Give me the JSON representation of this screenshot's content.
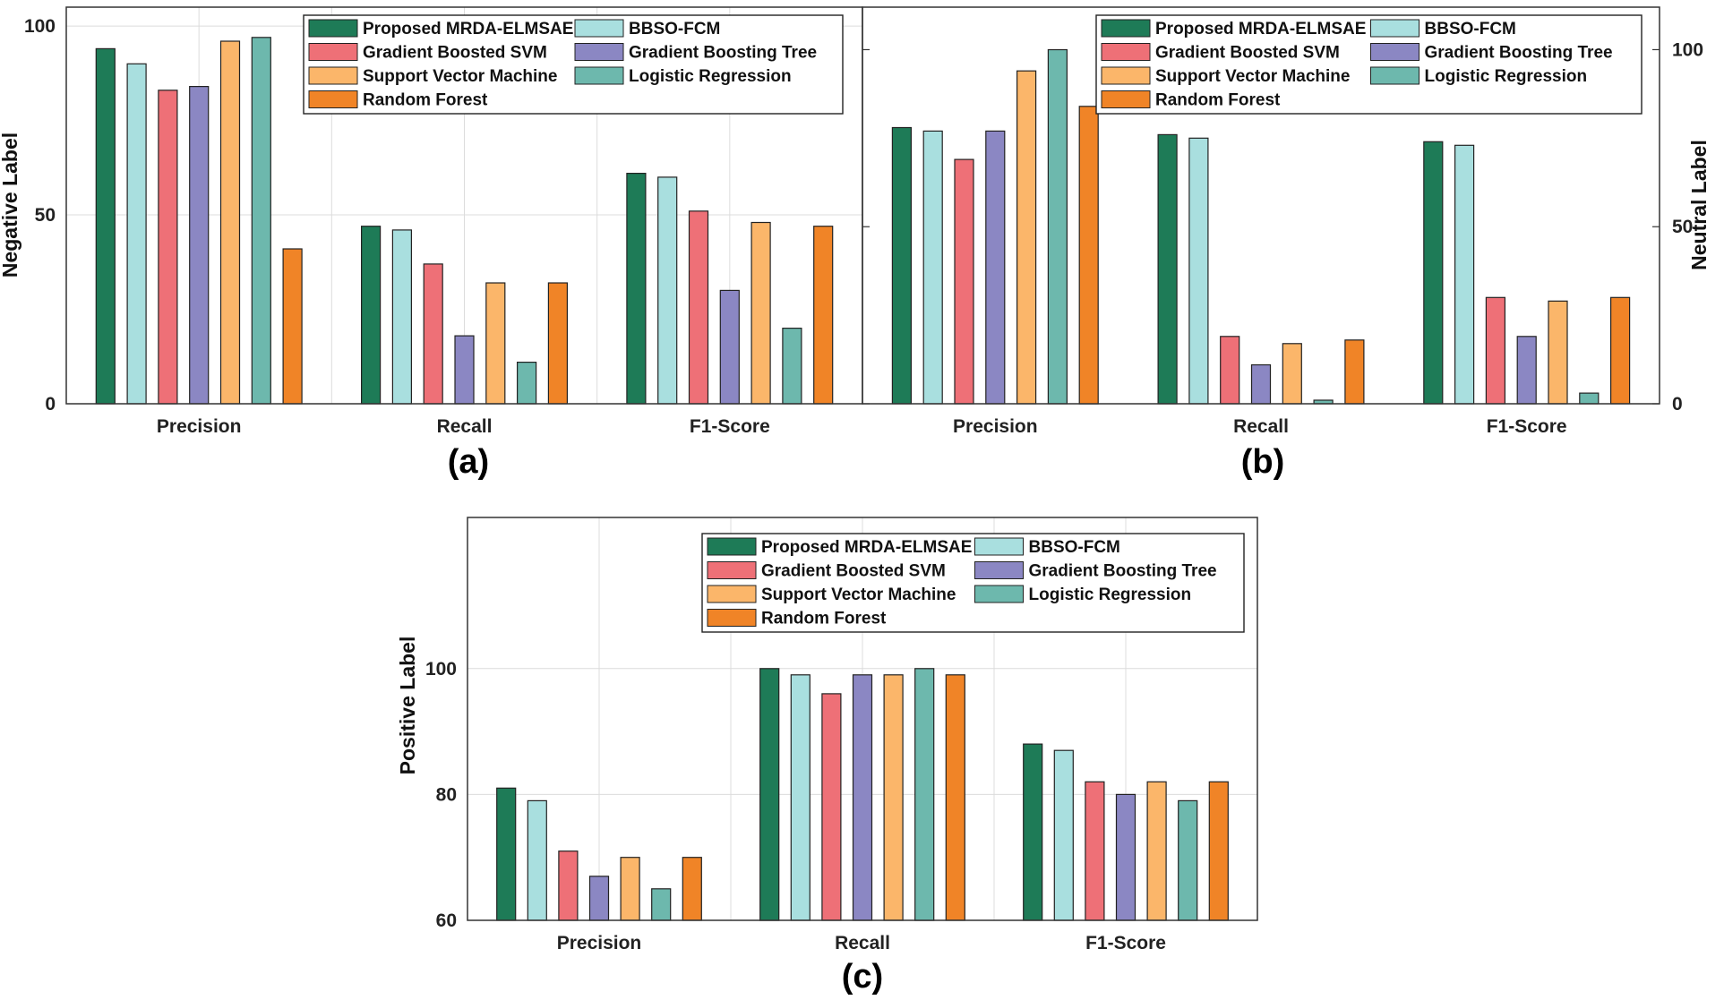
{
  "figure": {
    "captions": [
      "(a)",
      "(b)",
      "(c)"
    ]
  },
  "legend_labels": [
    "Proposed MRDA-ELMSAE",
    "BBSO-FCM",
    "Gradient Boosted SVM",
    "Gradient Boosting Tree",
    "Support Vector Machine",
    "Logistic Regression",
    "Random Forest"
  ],
  "series_colors": {
    "Proposed MRDA-ELMSAE": "#1e7b57",
    "BBSO-FCM": "#a9dfdf",
    "Gradient Boosted SVM": "#ee7077",
    "Gradient Boosting Tree": "#8b87c3",
    "Support Vector Machine": "#fbb66a",
    "Logistic Regression": "#6db8ad",
    "Random Forest": "#f08427"
  },
  "chart_data": [
    {
      "type": "bar",
      "caption": "(a)",
      "title": "",
      "xlabel": "",
      "ylabel": "Negative Label",
      "y_axis_side": "left",
      "ylim": [
        0,
        105
      ],
      "yticks": [
        0,
        50,
        100
      ],
      "grid": true,
      "legend_position": "top-right",
      "categories": [
        "Precision",
        "Recall",
        "F1-Score"
      ],
      "series": [
        {
          "name": "Proposed MRDA-ELMSAE",
          "values": [
            94,
            47,
            61
          ]
        },
        {
          "name": "BBSO-FCM",
          "values": [
            90,
            46,
            60
          ]
        },
        {
          "name": "Gradient Boosted SVM",
          "values": [
            83,
            37,
            51
          ]
        },
        {
          "name": "Gradient Boosting Tree",
          "values": [
            84,
            18,
            30
          ]
        },
        {
          "name": "Support Vector Machine",
          "values": [
            96,
            32,
            48
          ]
        },
        {
          "name": "Logistic Regression",
          "values": [
            97,
            11,
            20
          ]
        },
        {
          "name": "Random Forest",
          "values": [
            41,
            32,
            47
          ]
        }
      ]
    },
    {
      "type": "bar",
      "caption": "(b)",
      "title": "",
      "xlabel": "",
      "ylabel": "Neutral Label",
      "y_axis_side": "right",
      "ylim": [
        0,
        112
      ],
      "yticks": [
        0,
        50,
        100
      ],
      "grid": false,
      "legend_position": "top-right",
      "categories": [
        "Precision",
        "Recall",
        "F1-Score"
      ],
      "series": [
        {
          "name": "Proposed MRDA-ELMSAE",
          "values": [
            78,
            76,
            74
          ]
        },
        {
          "name": "BBSO-FCM",
          "values": [
            77,
            75,
            73
          ]
        },
        {
          "name": "Gradient Boosted SVM",
          "values": [
            69,
            19,
            30
          ]
        },
        {
          "name": "Gradient Boosting Tree",
          "values": [
            77,
            11,
            19
          ]
        },
        {
          "name": "Support Vector Machine",
          "values": [
            94,
            17,
            29
          ]
        },
        {
          "name": "Logistic Regression",
          "values": [
            100,
            1,
            3
          ]
        },
        {
          "name": "Random Forest",
          "values": [
            84,
            18,
            30
          ]
        }
      ]
    },
    {
      "type": "bar",
      "caption": "(c)",
      "title": "",
      "xlabel": "",
      "ylabel": "Positive Label",
      "y_axis_side": "left",
      "ylim": [
        60,
        124
      ],
      "yticks": [
        60,
        80,
        100
      ],
      "grid": true,
      "legend_position": "top-right",
      "categories": [
        "Precision",
        "Recall",
        "F1-Score"
      ],
      "series": [
        {
          "name": "Proposed MRDA-ELMSAE",
          "values": [
            81,
            100,
            88
          ]
        },
        {
          "name": "BBSO-FCM",
          "values": [
            79,
            99,
            87
          ]
        },
        {
          "name": "Gradient Boosted SVM",
          "values": [
            71,
            96,
            82
          ]
        },
        {
          "name": "Gradient Boosting Tree",
          "values": [
            67,
            99,
            80
          ]
        },
        {
          "name": "Support Vector Machine",
          "values": [
            70,
            99,
            82
          ]
        },
        {
          "name": "Logistic Regression",
          "values": [
            65,
            100,
            79
          ]
        },
        {
          "name": "Random Forest",
          "values": [
            70,
            99,
            82
          ]
        }
      ]
    }
  ]
}
